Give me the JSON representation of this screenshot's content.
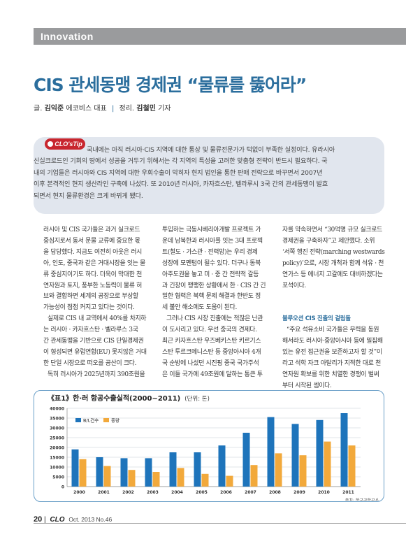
{
  "section": "Innovation",
  "headline": "CIS 관세동맹 경제권 “물류를 뚫어라”",
  "byline": {
    "prefix": "글.",
    "author": "김익준",
    "author_role": "에코비스 대표",
    "sep": "|",
    "editor_prefix": "정리.",
    "editor": "김철민",
    "editor_role": "기자"
  },
  "tip": {
    "badge": "CLO'sTip",
    "lines": [
      "국내에는 아직 러시아·CIS 지역에 대한 통상 및 물류전문가가 턱없이 부족한 실정이다. 유라시아",
      "신실크로드인 기회의 땅에서 성공을 거두기 위해서는 각 지역의 특성을 고려한 맞춤형 전략이 반드시 필요하다. 국",
      "내의 기업들은 러시아와 CIS 지역에 대한 우회수출이 막히자 현지 법인을 통한 판매 전략으로 바꾸면서 2007년",
      "이후 본격적인 현지 생산라인 구축에 나섰다. 또 2010년 러시아, 카자흐스탄, 벨라루시 3국 간의 관세동맹이 발효",
      "되면서 현지 물류환경은 크게 바뀌게 됐다."
    ]
  },
  "columns": {
    "col1": [
      "러시아 및 CIS 국가들은 과거 실크로드",
      "중심지로서 동서 문물 교류에 중요한 몫",
      "을 담당했다. 지금도 여전히 아웃은 러시",
      "아, 인도, 중국과 같은 거대시장을 잇는 물",
      "류 중심지이기도 하다. 더욱이 막대한 천",
      "연자원과 토지, 풍부한 노동력이 물류 허",
      "브와 결합하면 세계의 공장으로 부상할",
      "가능성이 점점 커지고 있다는 것이다.",
      "실제로 CIS 내 교역에서 40%를 차지하",
      "는 러시아 · 카자흐스탄 · 벨라루스 3국",
      "간 관세동맹을 기반으로 CIS 단일경제권",
      "이 형성되면 유럽연합(EU) 못지않은 거대",
      "한 단일 시장으로 떠오를 공산이 크다.",
      "독히 러시아가 2025년까지 390조원을"
    ],
    "col2": [
      "투입하는 극동시베리아개발 프로젝트 가",
      "운데 남북한과 러시아를 잇는 3대 프로젝",
      "트(철도 · 가스관 · 전력망)는 우리 경제",
      "성장에 모멘텀이 될수 있다. 더구나 동북",
      "아주도권을 놓고 미 · 중 간 전략적 갈등",
      "과 긴장이 팽팽한 상황에서 한 · CIS 간 긴",
      "밀한 협력은 북핵 문제 해결과 한반도 정",
      "세 불안 해소에도 도움이 된다.",
      "그러나 CIS 시장 진출에는 적잖은 난관",
      "이 도사리고 있다. 우선 중국의 견제다.",
      "최근 카자흐스탄 우즈베키스탄 키르기스",
      "스탄 투르크메니스탄 등 중앙아시아 4개",
      "국 순방에 나섰던 시진핑 중국 국가주석",
      "은 이들 국가에 49조원에 달하는 통큰 투"
    ],
    "col3": [
      "자를 약속하면서 “30억명 규모 실크로드",
      "경제권을 구축하자”고 제안했다. 소위",
      "‘서쪽 행진 전략(marching westwards",
      "policy)’으로, 시장 개척과 함께 석유 · 천",
      "연가스 등 에너지 고갈에도 대비하겠다는",
      "포석이다."
    ],
    "col3_subhead": "불루오션 CIS 진출의 걸림돌",
    "col3_after": [
      "“주요 석유소비 국가들은 무력을 동원",
      "해서라도 러시아·중앙아시아 등에 밀집해",
      "있는 유전 접근권을 보존하고자 할 것”이",
      "라고 석학 자크 아탈리가 지적한 대로 천",
      "연자원 확보를 위한 치열한 경쟁이 벌써",
      "부터 시작된 셈이다."
    ]
  },
  "chart_data": {
    "type": "bar",
    "title": "《표1》한·러 항공수출실적(2000~2011)",
    "unit": "(단위: 톤)",
    "categories": [
      "2000",
      "2001",
      "2002",
      "2003",
      "2004",
      "2005",
      "2006",
      "2007",
      "2008",
      "2009",
      "2010",
      "2011"
    ],
    "series": [
      {
        "name": "B/L건수",
        "color": "#1e74bb",
        "values": [
          19000,
          15000,
          14500,
          14500,
          17500,
          17500,
          21000,
          27500,
          35500,
          32000,
          34000,
          37500
        ]
      },
      {
        "name": "중량",
        "color": "#f2a93b",
        "values": [
          14000,
          10500,
          8500,
          7500,
          9500,
          6500,
          5500,
          11000,
          17000,
          16000,
          23000,
          21000
        ]
      }
    ],
    "ylim": [
      0,
      40000
    ],
    "yticks": [
      "0",
      "5000",
      "10000",
      "15000",
      "20000",
      "25000",
      "30000",
      "35000",
      "40000"
    ],
    "source": "출처: 한국공항공사",
    "legend_position": "top-left"
  },
  "footer": {
    "page": "20",
    "sep": "|",
    "magazine": "CLO",
    "issue": "Oct. 2013 No.46"
  },
  "colors": {
    "accent": "#2b6e9d",
    "section_bar": "#9a9b9d",
    "tip_bg": "#e1e6ee",
    "tip_badge": "#c8262e"
  }
}
